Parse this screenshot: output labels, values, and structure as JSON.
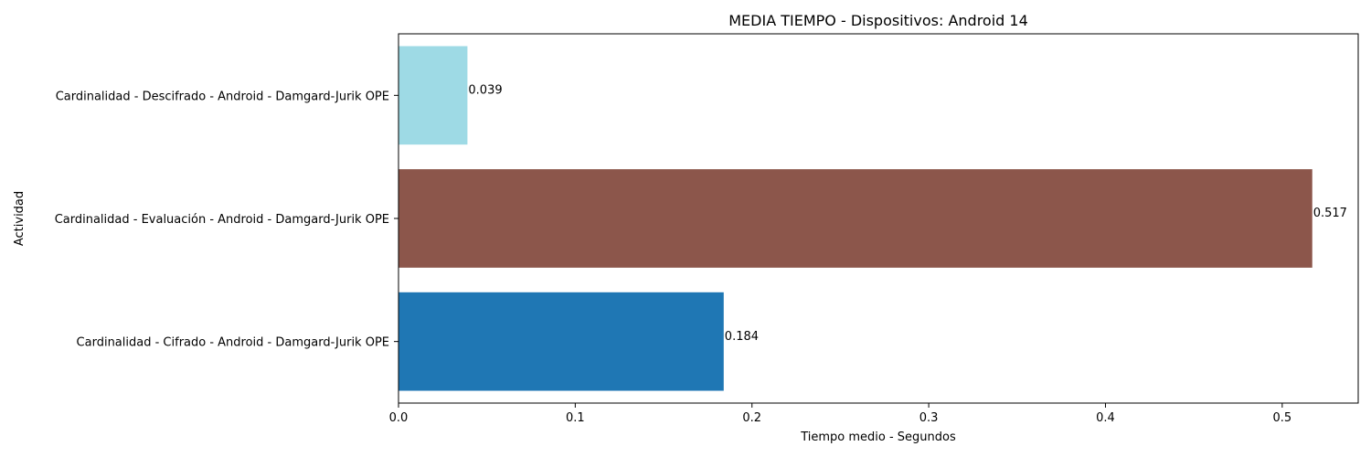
{
  "chart_data": {
    "type": "bar",
    "orientation": "horizontal",
    "title": "MEDIA TIEMPO - Dispositivos: Android 14",
    "xlabel": "Tiempo medio - Segundos",
    "ylabel": "Actividad",
    "categories": [
      "Cardinalidad - Cifrado - Android - Damgard-Jurik OPE",
      "Cardinalidad - Evaluación - Android - Damgard-Jurik OPE",
      "Cardinalidad - Descifrado - Android - Damgard-Jurik OPE"
    ],
    "values": [
      0.184,
      0.517,
      0.039
    ],
    "value_labels": [
      "0.184",
      "0.517",
      "0.039"
    ],
    "colors": [
      "#1f77b4",
      "#8c564b",
      "#9edae5"
    ],
    "xlim": [
      0,
      0.543
    ],
    "xticks": [
      0.0,
      0.1,
      0.2,
      0.3,
      0.4,
      0.5
    ],
    "xtick_labels": [
      "0.0",
      "0.1",
      "0.2",
      "0.3",
      "0.4",
      "0.5"
    ],
    "grid": false,
    "legend": "none"
  }
}
